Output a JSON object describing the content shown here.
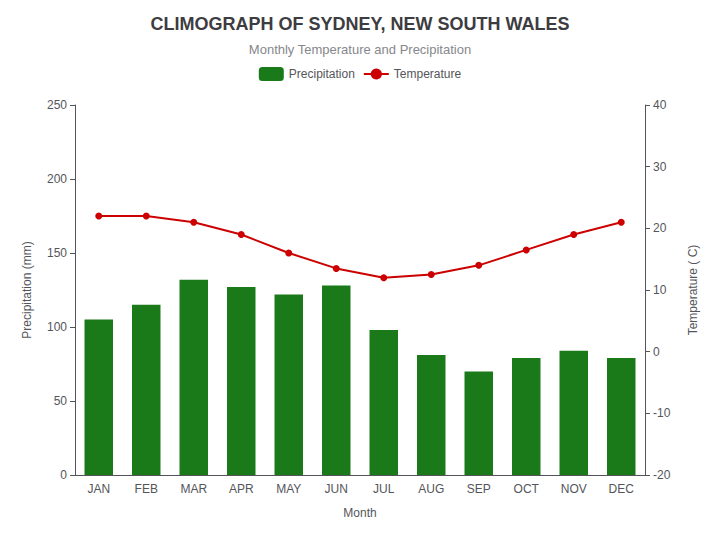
{
  "chart_data": {
    "type": "bar",
    "title": "CLIMOGRAPH OF SYDNEY, NEW SOUTH WALES",
    "subtitle": "Monthly Temperature and Precipitation",
    "categories": [
      "JAN",
      "FEB",
      "MAR",
      "APR",
      "MAY",
      "JUN",
      "JUL",
      "AUG",
      "SEP",
      "OCT",
      "NOV",
      "DEC"
    ],
    "series": [
      {
        "name": "Precipitation",
        "type": "bar",
        "color": "#1a7a1a",
        "values": [
          105,
          115,
          132,
          127,
          122,
          128,
          98,
          81,
          70,
          79,
          84,
          79
        ]
      },
      {
        "name": "Temperature",
        "type": "line",
        "color": "#cc0000",
        "marker": "circle",
        "axis": "y2",
        "values": [
          22,
          22,
          21,
          19,
          16,
          13.5,
          12,
          12.5,
          14,
          16.5,
          19,
          21
        ]
      }
    ],
    "xlabel": "Month",
    "ylabel": "Precipitation (mm)",
    "y2label": "Temperature ( C)",
    "ylim": [
      0,
      250
    ],
    "yticks": [
      0,
      50,
      100,
      150,
      200,
      250
    ],
    "y2lim": [
      -20,
      40
    ],
    "y2ticks": [
      -20,
      -10,
      0,
      10,
      20,
      30,
      40
    ],
    "grid": false,
    "legend": "top"
  }
}
